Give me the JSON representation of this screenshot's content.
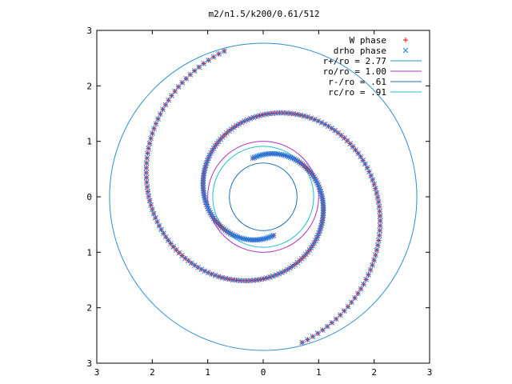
{
  "chart_data": {
    "type": "scatter",
    "title": "m2/n1.5/k200/0.61/512",
    "xlim": [
      -3,
      3
    ],
    "ylim": [
      -3,
      3
    ],
    "x_tick_values": [
      -3,
      -2,
      -1,
      0,
      1,
      2,
      3
    ],
    "y_tick_values": [
      -3,
      -2,
      -1,
      0,
      1,
      2,
      3
    ],
    "x_tick_labels": [
      "3",
      "2",
      "1",
      "0",
      "1",
      "2",
      "3"
    ],
    "y_tick_labels": [
      "3",
      "2",
      "1",
      "0",
      "1",
      "2",
      "3"
    ],
    "grid": false,
    "legend_position": "top-right",
    "series": [
      {
        "name": "W phase",
        "style": "points",
        "marker": "plus",
        "color": "#ff0000",
        "spiral": {
          "r_inner": 0.72,
          "r_outer": 2.72,
          "theta_turns": 1.0,
          "count": 160
        }
      },
      {
        "name": "drho phase",
        "style": "points",
        "marker": "cross",
        "color": "#1e7fe6",
        "spiral": {
          "r_inner": 0.72,
          "r_outer": 2.72,
          "theta_turns": 1.0,
          "count": 160
        }
      }
    ],
    "circles": [
      {
        "name": "r+/ro = 2.77",
        "r": 2.77,
        "color": "#2c8fd0"
      },
      {
        "name": "ro/ro = 1.00",
        "r": 1.0,
        "color": "#b030c0"
      },
      {
        "name": "r-/ro = .61",
        "r": 0.61,
        "color": "#1f6fb0"
      },
      {
        "name": "rc/ro = .91",
        "r": 0.91,
        "color": "#20c0c8"
      }
    ]
  }
}
